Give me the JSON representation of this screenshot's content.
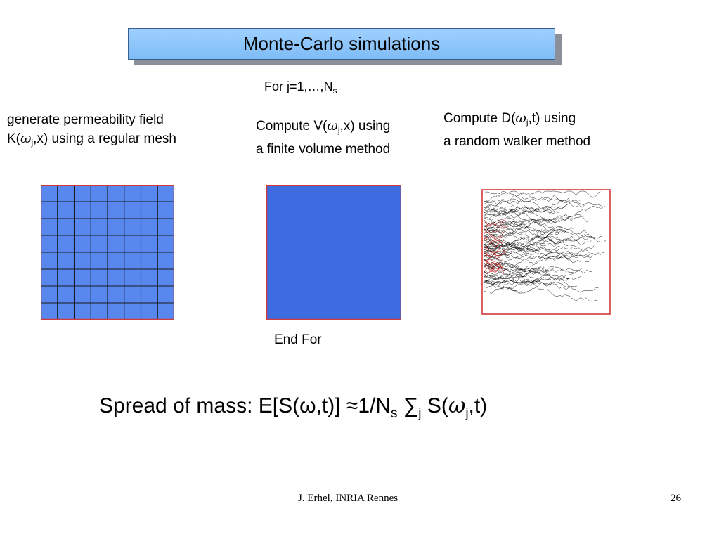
{
  "slide": {
    "title": "Monte-Carlo simulations",
    "loop_start": {
      "text": "For j=1,…,N",
      "sub": "s"
    },
    "step1": {
      "line1": "generate permeability field",
      "line2_prefix": "K(",
      "line2_greek": "ω",
      "line2_sub": "j",
      "line2_suffix": ",x)  using a regular mesh"
    },
    "step2": {
      "line1_prefix": "Compute V(",
      "line1_greek": "ω",
      "line1_sub": "j",
      "line1_suffix": ",x)  using",
      "line2": "a finite volume method"
    },
    "step3": {
      "line1_prefix": "Compute D(",
      "line1_greek": "ω",
      "line1_sub": "j",
      "line1_suffix": ",t)  using",
      "line2": "a random walker method"
    },
    "loop_end": "End For",
    "formula": {
      "prefix": "Spread of mass: E[S(ω,t)] ≈1/N",
      "sub_s": "s",
      "sum": " ∑",
      "sub_j": "j",
      "mid": " S(",
      "greek": "ω",
      "sub_j2": "j",
      "suffix": ",t)"
    },
    "footer": {
      "author": "J. Erhel, INRIA Rennes",
      "page": "26"
    }
  },
  "colors": {
    "title_fill": "#8ec7fb",
    "frame_red": "#d43a3a",
    "grid_line": "#1a1a1a"
  },
  "figures": [
    "permeability-field-image",
    "velocity-field-image",
    "random-walk-image"
  ]
}
